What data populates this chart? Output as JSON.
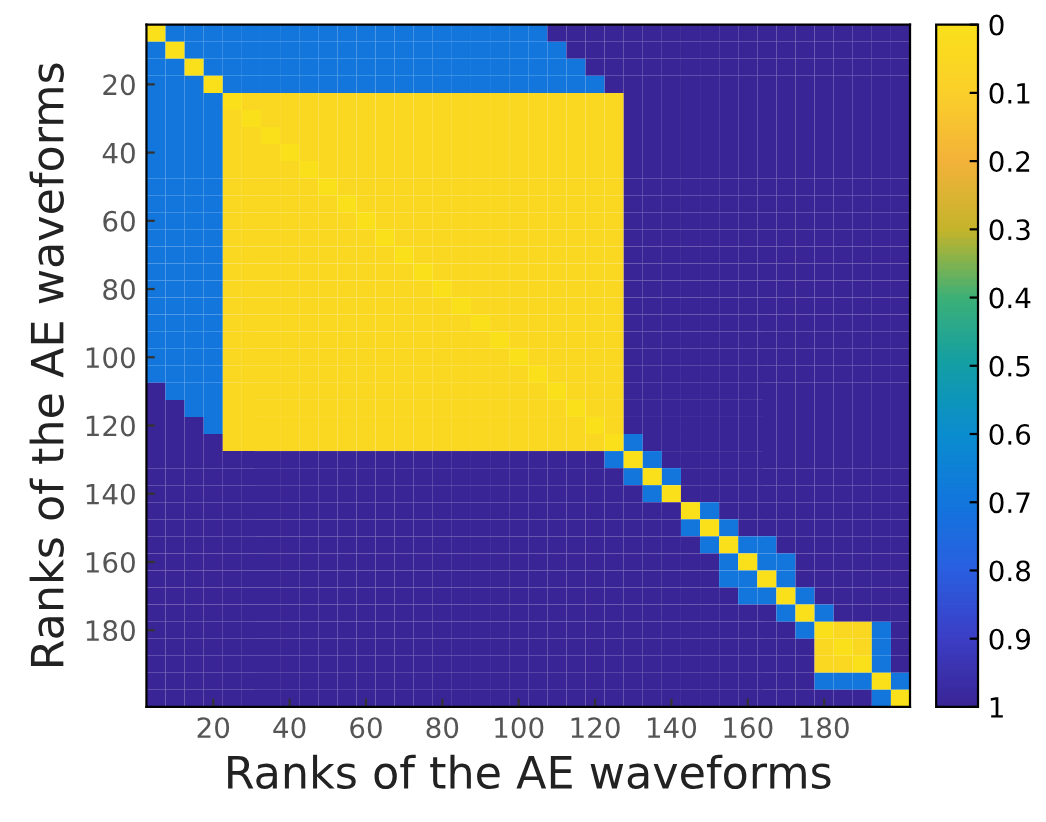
{
  "chart_data": {
    "type": "heatmap",
    "xlabel": "Ranks of the AE waveforms",
    "ylabel": "Ranks of the AE waveforms",
    "categories": [
      null,
      null,
      null,
      "20",
      null,
      null,
      null,
      "40",
      null,
      null,
      null,
      "60",
      null,
      null,
      null,
      "80",
      null,
      null,
      null,
      "100",
      null,
      null,
      null,
      "120",
      null,
      null,
      null,
      "140",
      null,
      null,
      null,
      "160",
      null,
      null,
      null,
      "180",
      null,
      null,
      null,
      null
    ],
    "y_categories": [
      null,
      null,
      null,
      "20",
      null,
      null,
      null,
      "40",
      null,
      null,
      null,
      "60",
      null,
      null,
      null,
      "80",
      null,
      null,
      null,
      "100",
      null,
      null,
      null,
      "120",
      null,
      null,
      null,
      "140",
      null,
      null,
      null,
      "160",
      null,
      null,
      null,
      "180",
      null,
      null,
      null,
      null
    ],
    "clim": [
      1,
      0
    ],
    "cticks": [
      0,
      0.1,
      0.2,
      0.3,
      0.4,
      0.5,
      0.6,
      0.7,
      0.8,
      0.9,
      1
    ],
    "colors": [
      "#f9e01b",
      "#fbcf2a",
      "#f3b23a",
      "#c4b42b",
      "#3cb077",
      "#129ea6",
      "#0a8dcf",
      "#1276dd",
      "#2a5fe0",
      "#3b3fc6",
      "#3a2596"
    ],
    "cells": [
      [
        0,
        0.7,
        0.7,
        0.7,
        0.7,
        0.7,
        0.7,
        0.7,
        0.7,
        0.7,
        0.7,
        0.7,
        0.7,
        0.7,
        0.7,
        0.7,
        0.7,
        0.7,
        0.7,
        0.7,
        0.7,
        1,
        1,
        1,
        1,
        1,
        1,
        1,
        1,
        1,
        1,
        1,
        1,
        1,
        1,
        1,
        1,
        1,
        1,
        1
      ],
      [
        0.7,
        0,
        0.7,
        0.7,
        0.7,
        0.7,
        0.7,
        0.7,
        0.7,
        0.7,
        0.7,
        0.7,
        0.7,
        0.7,
        0.7,
        0.7,
        0.7,
        0.7,
        0.7,
        0.7,
        0.7,
        0.7,
        1,
        1,
        1,
        1,
        1,
        1,
        1,
        1,
        1,
        1,
        1,
        1,
        1,
        1,
        1,
        1,
        1,
        1
      ],
      [
        0.7,
        0.7,
        0,
        0.7,
        0.7,
        0.7,
        0.7,
        0.7,
        0.7,
        0.7,
        0.7,
        0.7,
        0.7,
        0.7,
        0.7,
        0.7,
        0.7,
        0.7,
        0.7,
        0.7,
        0.7,
        0.7,
        0.7,
        1,
        1,
        1,
        1,
        1,
        1,
        1,
        1,
        1,
        1,
        1,
        1,
        1,
        1,
        1,
        1,
        1
      ],
      [
        0.7,
        0.7,
        0.7,
        0,
        0.7,
        0.7,
        0.7,
        0.7,
        0.7,
        0.7,
        0.7,
        0.7,
        0.7,
        0.7,
        0.7,
        0.7,
        0.7,
        0.7,
        0.7,
        0.7,
        0.7,
        0.7,
        0.7,
        0.7,
        1,
        1,
        1,
        1,
        1,
        1,
        1,
        1,
        1,
        1,
        1,
        1,
        1,
        1,
        1,
        1
      ],
      [
        0.7,
        0.7,
        0.7,
        0.7,
        0,
        0.05,
        0.05,
        0.05,
        0.05,
        0.05,
        0.05,
        0.05,
        0.05,
        0.05,
        0.05,
        0.05,
        0.05,
        0.05,
        0.05,
        0.05,
        0.05,
        0.05,
        0.05,
        0.05,
        0.05,
        1,
        1,
        1,
        1,
        1,
        1,
        1,
        1,
        1,
        1,
        1,
        1,
        1,
        1,
        1
      ],
      [
        0.7,
        0.7,
        0.7,
        0.7,
        0.05,
        0,
        0.05,
        0.05,
        0.05,
        0.05,
        0.05,
        0.05,
        0.05,
        0.05,
        0.05,
        0.05,
        0.05,
        0.05,
        0.05,
        0.05,
        0.05,
        0.05,
        0.05,
        0.05,
        0.05,
        1,
        1,
        1,
        1,
        1,
        1,
        1,
        1,
        1,
        1,
        1,
        1,
        1,
        1,
        1
      ],
      [
        0.7,
        0.7,
        0.7,
        0.7,
        0.05,
        0.05,
        0,
        0.05,
        0.05,
        0.05,
        0.05,
        0.05,
        0.05,
        0.05,
        0.05,
        0.05,
        0.05,
        0.05,
        0.05,
        0.05,
        0.05,
        0.05,
        0.05,
        0.05,
        0.05,
        1,
        1,
        1,
        1,
        1,
        1,
        1,
        1,
        1,
        1,
        1,
        1,
        1,
        1,
        1
      ],
      [
        0.7,
        0.7,
        0.7,
        0.7,
        0.05,
        0.05,
        0.05,
        0,
        0.05,
        0.05,
        0.05,
        0.05,
        0.05,
        0.05,
        0.05,
        0.05,
        0.05,
        0.05,
        0.05,
        0.05,
        0.05,
        0.05,
        0.05,
        0.05,
        0.05,
        1,
        1,
        1,
        1,
        1,
        1,
        1,
        1,
        1,
        1,
        1,
        1,
        1,
        1,
        1
      ],
      [
        0.7,
        0.7,
        0.7,
        0.7,
        0.05,
        0.05,
        0.05,
        0.05,
        0,
        0.05,
        0.05,
        0.05,
        0.05,
        0.05,
        0.05,
        0.05,
        0.05,
        0.05,
        0.05,
        0.05,
        0.05,
        0.05,
        0.05,
        0.05,
        0.05,
        1,
        1,
        1,
        1,
        1,
        1,
        1,
        1,
        1,
        1,
        1,
        1,
        1,
        1,
        1
      ],
      [
        0.7,
        0.7,
        0.7,
        0.7,
        0.05,
        0.05,
        0.05,
        0.05,
        0.05,
        0,
        0.05,
        0.05,
        0.05,
        0.05,
        0.05,
        0.05,
        0.05,
        0.05,
        0.05,
        0.05,
        0.05,
        0.05,
        0.05,
        0.05,
        0.05,
        1,
        1,
        1,
        1,
        1,
        1,
        1,
        1,
        1,
        1,
        1,
        1,
        1,
        1,
        1
      ],
      [
        0.7,
        0.7,
        0.7,
        0.7,
        0.05,
        0.05,
        0.05,
        0.05,
        0.05,
        0.05,
        0,
        0.05,
        0.05,
        0.05,
        0.05,
        0.05,
        0.05,
        0.05,
        0.05,
        0.05,
        0.05,
        0.05,
        0.05,
        0.05,
        0.05,
        1,
        1,
        1,
        1,
        1,
        1,
        1,
        1,
        1,
        1,
        1,
        1,
        1,
        1,
        1
      ],
      [
        0.7,
        0.7,
        0.7,
        0.7,
        0.05,
        0.05,
        0.05,
        0.05,
        0.05,
        0.05,
        0.05,
        0,
        0.05,
        0.05,
        0.05,
        0.05,
        0.05,
        0.05,
        0.05,
        0.05,
        0.05,
        0.05,
        0.05,
        0.05,
        0.05,
        1,
        1,
        1,
        1,
        1,
        1,
        1,
        1,
        1,
        1,
        1,
        1,
        1,
        1,
        1
      ],
      [
        0.7,
        0.7,
        0.7,
        0.7,
        0.05,
        0.05,
        0.05,
        0.05,
        0.05,
        0.05,
        0.05,
        0.05,
        0,
        0.05,
        0.05,
        0.05,
        0.05,
        0.05,
        0.05,
        0.05,
        0.05,
        0.05,
        0.05,
        0.05,
        0.05,
        1,
        1,
        1,
        1,
        1,
        1,
        1,
        1,
        1,
        1,
        1,
        1,
        1,
        1,
        1
      ],
      [
        0.7,
        0.7,
        0.7,
        0.7,
        0.05,
        0.05,
        0.05,
        0.05,
        0.05,
        0.05,
        0.05,
        0.05,
        0.05,
        0,
        0.05,
        0.05,
        0.05,
        0.05,
        0.05,
        0.05,
        0.05,
        0.05,
        0.05,
        0.05,
        0.05,
        1,
        1,
        1,
        1,
        1,
        1,
        1,
        1,
        1,
        1,
        1,
        1,
        1,
        1,
        1
      ],
      [
        0.7,
        0.7,
        0.7,
        0.7,
        0.05,
        0.05,
        0.05,
        0.05,
        0.05,
        0.05,
        0.05,
        0.05,
        0.05,
        0.05,
        0,
        0.05,
        0.05,
        0.05,
        0.05,
        0.05,
        0.05,
        0.05,
        0.05,
        0.05,
        0.05,
        1,
        1,
        1,
        1,
        1,
        1,
        1,
        1,
        1,
        1,
        1,
        1,
        1,
        1,
        1
      ],
      [
        0.7,
        0.7,
        0.7,
        0.7,
        0.05,
        0.05,
        0.05,
        0.05,
        0.05,
        0.05,
        0.05,
        0.05,
        0.05,
        0.05,
        0.05,
        0,
        0.05,
        0.05,
        0.05,
        0.05,
        0.05,
        0.05,
        0.05,
        0.05,
        0.05,
        1,
        1,
        1,
        1,
        1,
        1,
        1,
        1,
        1,
        1,
        1,
        1,
        1,
        1,
        1
      ],
      [
        0.7,
        0.7,
        0.7,
        0.7,
        0.05,
        0.05,
        0.05,
        0.05,
        0.05,
        0.05,
        0.05,
        0.05,
        0.05,
        0.05,
        0.05,
        0.05,
        0,
        0.05,
        0.05,
        0.05,
        0.05,
        0.05,
        0.05,
        0.05,
        0.05,
        1,
        1,
        1,
        1,
        1,
        1,
        1,
        1,
        1,
        1,
        1,
        1,
        1,
        1,
        1
      ],
      [
        0.7,
        0.7,
        0.7,
        0.7,
        0.05,
        0.05,
        0.05,
        0.05,
        0.05,
        0.05,
        0.05,
        0.05,
        0.05,
        0.05,
        0.05,
        0.05,
        0.05,
        0,
        0.05,
        0.05,
        0.05,
        0.05,
        0.05,
        0.05,
        0.05,
        1,
        1,
        1,
        1,
        1,
        1,
        1,
        1,
        1,
        1,
        1,
        1,
        1,
        1,
        1
      ],
      [
        0.7,
        0.7,
        0.7,
        0.7,
        0.05,
        0.05,
        0.05,
        0.05,
        0.05,
        0.05,
        0.05,
        0.05,
        0.05,
        0.05,
        0.05,
        0.05,
        0.05,
        0.05,
        0,
        0.05,
        0.05,
        0.05,
        0.05,
        0.05,
        0.05,
        1,
        1,
        1,
        1,
        1,
        1,
        1,
        1,
        1,
        1,
        1,
        1,
        1,
        1,
        1
      ],
      [
        0.7,
        0.7,
        0.7,
        0.7,
        0.05,
        0.05,
        0.05,
        0.05,
        0.05,
        0.05,
        0.05,
        0.05,
        0.05,
        0.05,
        0.05,
        0.05,
        0.05,
        0.05,
        0.05,
        0,
        0.05,
        0.05,
        0.05,
        0.05,
        0.05,
        1,
        1,
        1,
        1,
        1,
        1,
        1,
        1,
        1,
        1,
        1,
        1,
        1,
        1,
        1
      ],
      [
        0.7,
        0.7,
        0.7,
        0.7,
        0.05,
        0.05,
        0.05,
        0.05,
        0.05,
        0.05,
        0.05,
        0.05,
        0.05,
        0.05,
        0.05,
        0.05,
        0.05,
        0.05,
        0.05,
        0.05,
        0,
        0.05,
        0.05,
        0.05,
        0.05,
        1,
        1,
        1,
        1,
        1,
        1,
        1,
        1,
        1,
        1,
        1,
        1,
        1,
        1,
        1
      ],
      [
        1,
        0.7,
        0.7,
        0.7,
        0.05,
        0.05,
        0.05,
        0.05,
        0.05,
        0.05,
        0.05,
        0.05,
        0.05,
        0.05,
        0.05,
        0.05,
        0.05,
        0.05,
        0.05,
        0.05,
        0.05,
        0,
        0.05,
        0.05,
        0.05,
        1,
        1,
        1,
        1,
        1,
        1,
        1,
        1,
        1,
        1,
        1,
        1,
        1,
        1,
        1
      ],
      [
        1,
        1,
        0.7,
        0.7,
        0.05,
        0.05,
        0.05,
        0.05,
        0.05,
        0.05,
        0.05,
        0.05,
        0.05,
        0.05,
        0.05,
        0.05,
        0.05,
        0.05,
        0.05,
        0.05,
        0.05,
        0.05,
        0,
        0.05,
        0.05,
        1,
        1,
        1,
        1,
        1,
        1,
        1,
        1,
        1,
        1,
        1,
        1,
        1,
        1,
        1
      ],
      [
        1,
        1,
        1,
        0.7,
        0.05,
        0.05,
        0.05,
        0.05,
        0.05,
        0.05,
        0.05,
        0.05,
        0.05,
        0.05,
        0.05,
        0.05,
        0.05,
        0.05,
        0.05,
        0.05,
        0.05,
        0.05,
        0.05,
        0,
        0.05,
        1,
        1,
        1,
        1,
        1,
        1,
        1,
        1,
        1,
        1,
        1,
        1,
        1,
        1,
        1
      ],
      [
        1,
        1,
        1,
        1,
        0.05,
        0.05,
        0.05,
        0.05,
        0.05,
        0.05,
        0.05,
        0.05,
        0.05,
        0.05,
        0.05,
        0.05,
        0.05,
        0.05,
        0.05,
        0.05,
        0.05,
        0.05,
        0.05,
        0.05,
        0,
        0.7,
        1,
        1,
        1,
        1,
        1,
        1,
        1,
        1,
        1,
        1,
        1,
        1,
        1,
        1
      ],
      [
        1,
        1,
        1,
        1,
        1,
        1,
        1,
        1,
        1,
        1,
        1,
        1,
        1,
        1,
        1,
        1,
        1,
        1,
        1,
        1,
        1,
        1,
        1,
        1,
        0.7,
        0,
        0.7,
        1,
        1,
        1,
        1,
        1,
        1,
        1,
        1,
        1,
        1,
        1,
        1,
        1
      ],
      [
        1,
        1,
        1,
        1,
        1,
        1,
        1,
        1,
        1,
        1,
        1,
        1,
        1,
        1,
        1,
        1,
        1,
        1,
        1,
        1,
        1,
        1,
        1,
        1,
        1,
        0.7,
        0,
        0.7,
        1,
        1,
        1,
        1,
        1,
        1,
        1,
        1,
        1,
        1,
        1,
        1
      ],
      [
        1,
        1,
        1,
        1,
        1,
        1,
        1,
        1,
        1,
        1,
        1,
        1,
        1,
        1,
        1,
        1,
        1,
        1,
        1,
        1,
        1,
        1,
        1,
        1,
        1,
        1,
        0.7,
        0,
        1,
        1,
        1,
        1,
        1,
        1,
        1,
        1,
        1,
        1,
        1,
        1
      ],
      [
        1,
        1,
        1,
        1,
        1,
        1,
        1,
        1,
        1,
        1,
        1,
        1,
        1,
        1,
        1,
        1,
        1,
        1,
        1,
        1,
        1,
        1,
        1,
        1,
        1,
        1,
        1,
        1,
        0,
        0.7,
        1,
        1,
        1,
        1,
        1,
        1,
        1,
        1,
        1,
        1
      ],
      [
        1,
        1,
        1,
        1,
        1,
        1,
        1,
        1,
        1,
        1,
        1,
        1,
        1,
        1,
        1,
        1,
        1,
        1,
        1,
        1,
        1,
        1,
        1,
        1,
        1,
        1,
        1,
        1,
        0.7,
        0,
        0.7,
        1,
        1,
        1,
        1,
        1,
        1,
        1,
        1,
        1
      ],
      [
        1,
        1,
        1,
        1,
        1,
        1,
        1,
        1,
        1,
        1,
        1,
        1,
        1,
        1,
        1,
        1,
        1,
        1,
        1,
        1,
        1,
        1,
        1,
        1,
        1,
        1,
        1,
        1,
        1,
        0.7,
        0,
        0.7,
        0.7,
        1,
        1,
        1,
        1,
        1,
        1,
        1
      ],
      [
        1,
        1,
        1,
        1,
        1,
        1,
        1,
        1,
        1,
        1,
        1,
        1,
        1,
        1,
        1,
        1,
        1,
        1,
        1,
        1,
        1,
        1,
        1,
        1,
        1,
        1,
        1,
        1,
        1,
        1,
        0.7,
        0,
        0.7,
        0.7,
        1,
        1,
        1,
        1,
        1,
        1
      ],
      [
        1,
        1,
        1,
        1,
        1,
        1,
        1,
        1,
        1,
        1,
        1,
        1,
        1,
        1,
        1,
        1,
        1,
        1,
        1,
        1,
        1,
        1,
        1,
        1,
        1,
        1,
        1,
        1,
        1,
        1,
        0.7,
        0.7,
        0,
        0.7,
        1,
        1,
        1,
        1,
        1,
        1
      ],
      [
        1,
        1,
        1,
        1,
        1,
        1,
        1,
        1,
        1,
        1,
        1,
        1,
        1,
        1,
        1,
        1,
        1,
        1,
        1,
        1,
        1,
        1,
        1,
        1,
        1,
        1,
        1,
        1,
        1,
        1,
        1,
        0.7,
        0.7,
        0,
        0.7,
        1,
        1,
        1,
        1,
        1
      ],
      [
        1,
        1,
        1,
        1,
        1,
        1,
        1,
        1,
        1,
        1,
        1,
        1,
        1,
        1,
        1,
        1,
        1,
        1,
        1,
        1,
        1,
        1,
        1,
        1,
        1,
        1,
        1,
        1,
        1,
        1,
        1,
        1,
        1,
        0.7,
        0,
        0.7,
        1,
        1,
        1,
        1
      ],
      [
        1,
        1,
        1,
        1,
        1,
        1,
        1,
        1,
        1,
        1,
        1,
        1,
        1,
        1,
        1,
        1,
        1,
        1,
        1,
        1,
        1,
        1,
        1,
        1,
        1,
        1,
        1,
        1,
        1,
        1,
        1,
        1,
        1,
        1,
        0.7,
        0,
        0.05,
        0.05,
        0.7,
        1
      ],
      [
        1,
        1,
        1,
        1,
        1,
        1,
        1,
        1,
        1,
        1,
        1,
        1,
        1,
        1,
        1,
        1,
        1,
        1,
        1,
        1,
        1,
        1,
        1,
        1,
        1,
        1,
        1,
        1,
        1,
        1,
        1,
        1,
        1,
        1,
        1,
        0.05,
        0,
        0.05,
        0.7,
        1
      ],
      [
        1,
        1,
        1,
        1,
        1,
        1,
        1,
        1,
        1,
        1,
        1,
        1,
        1,
        1,
        1,
        1,
        1,
        1,
        1,
        1,
        1,
        1,
        1,
        1,
        1,
        1,
        1,
        1,
        1,
        1,
        1,
        1,
        1,
        1,
        1,
        0.05,
        0.05,
        0,
        0.7,
        1
      ],
      [
        1,
        1,
        1,
        1,
        1,
        1,
        1,
        1,
        1,
        1,
        1,
        1,
        1,
        1,
        1,
        1,
        1,
        1,
        1,
        1,
        1,
        1,
        1,
        1,
        1,
        1,
        1,
        1,
        1,
        1,
        1,
        1,
        1,
        1,
        1,
        0.7,
        0.7,
        0.7,
        0,
        0.7
      ],
      [
        1,
        1,
        1,
        1,
        1,
        1,
        1,
        1,
        1,
        1,
        1,
        1,
        1,
        1,
        1,
        1,
        1,
        1,
        1,
        1,
        1,
        1,
        1,
        1,
        1,
        1,
        1,
        1,
        1,
        1,
        1,
        1,
        1,
        1,
        1,
        1,
        1,
        1,
        0.7,
        0
      ]
    ]
  }
}
